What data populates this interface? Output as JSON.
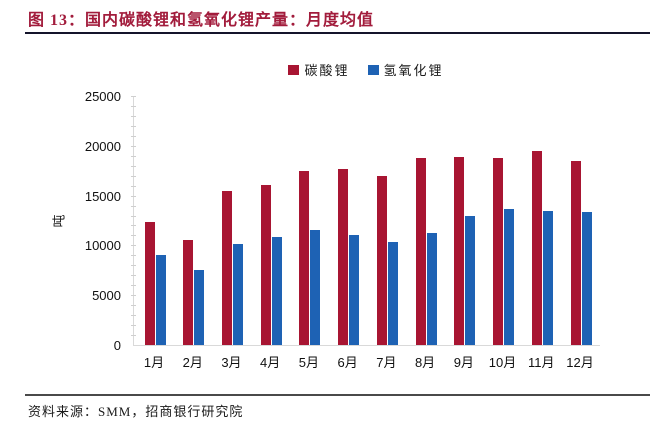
{
  "header": {
    "title": "图 13：国内碳酸锂和氢氧化锂产量：月度均值",
    "title_color": "#A21C3C"
  },
  "footer": {
    "source": "资料来源：SMM，招商银行研究院"
  },
  "chart_data": {
    "type": "bar",
    "title": "国内碳酸锂和氢氧化锂产量：月度均值",
    "categories": [
      "1月",
      "2月",
      "3月",
      "4月",
      "5月",
      "6月",
      "7月",
      "8月",
      "9月",
      "10月",
      "11月",
      "12月"
    ],
    "series": [
      {
        "name": "碳酸锂",
        "color": "#A81532",
        "values": [
          12400,
          10500,
          15500,
          16100,
          17500,
          17700,
          17000,
          18800,
          18900,
          18800,
          19500,
          18500
        ]
      },
      {
        "name": "氢氧化锂",
        "color": "#1E62B4",
        "values": [
          9000,
          7500,
          10100,
          10800,
          11600,
          11000,
          10300,
          11300,
          13000,
          13700,
          13500,
          13400
        ]
      }
    ],
    "xlabel": "",
    "ylabel": "吨",
    "ylim": [
      0,
      25000
    ],
    "ytick_step": 5000,
    "yticks": [
      "0",
      "5000",
      "10000",
      "15000",
      "20000",
      "25000"
    ],
    "minor_tick_step": 1000,
    "legend_position": "top-center",
    "grid": false,
    "axis_color": "#d9d9d9"
  }
}
